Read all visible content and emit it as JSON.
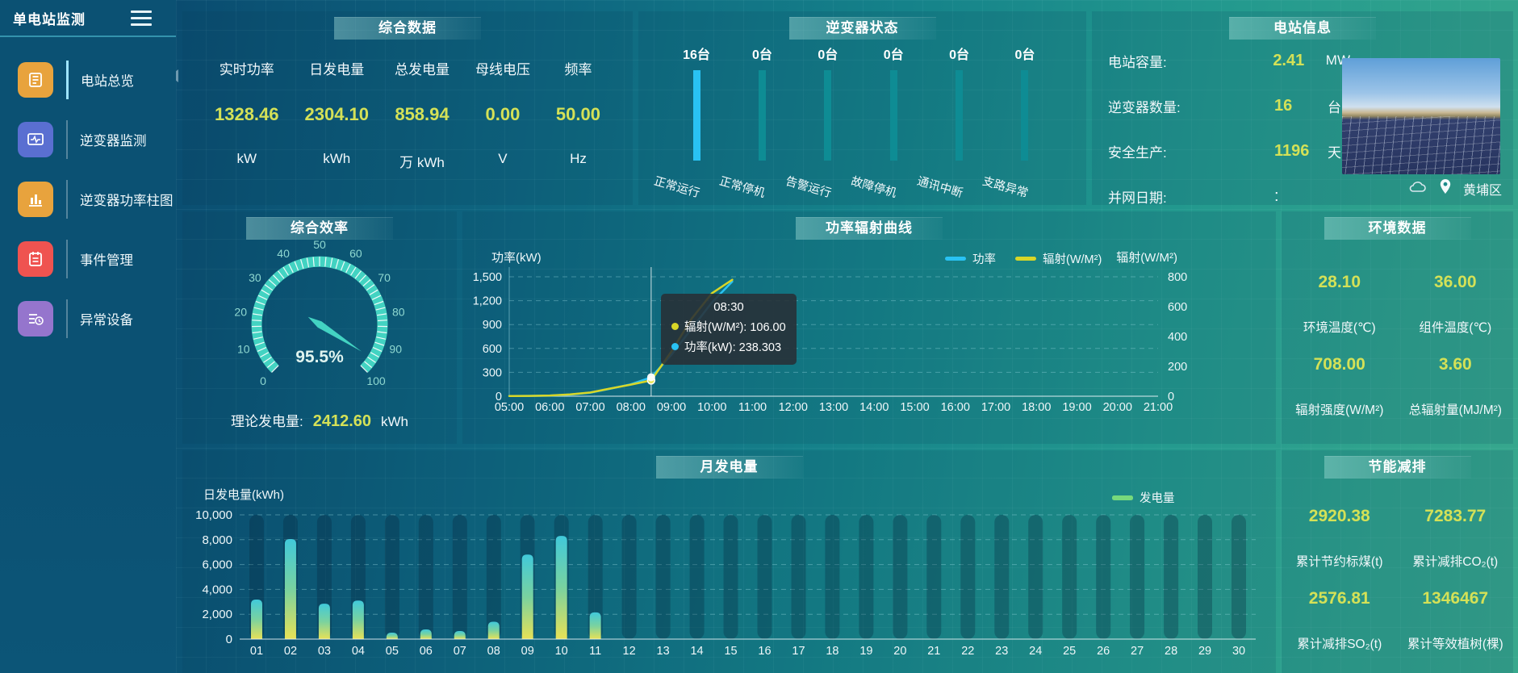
{
  "app": {
    "title": "单电站监测"
  },
  "sidebar": {
    "items": [
      {
        "id": "station-overview",
        "label": "电站总览",
        "icon": "report-icon",
        "color": "#e8a33d",
        "active": true
      },
      {
        "id": "inverter-monitor",
        "label": "逆变器监测",
        "icon": "monitor-icon",
        "color": "#5a6fd1",
        "active": false
      },
      {
        "id": "inverter-power-bars",
        "label": "逆变器功率柱图",
        "icon": "bar-chart-icon",
        "color": "#e8a33d",
        "active": false
      },
      {
        "id": "event-management",
        "label": "事件管理",
        "icon": "notebook-icon",
        "color": "#ef5350",
        "active": false
      },
      {
        "id": "abnormal-devices",
        "label": "异常设备",
        "icon": "device-list-icon",
        "color": "#9575cd",
        "active": false
      }
    ]
  },
  "summary": {
    "title": "综合数据",
    "metrics": [
      {
        "label": "实时功率",
        "value": "1328.46",
        "unit": "kW"
      },
      {
        "label": "日发电量",
        "value": "2304.10",
        "unit": "kWh"
      },
      {
        "label": "总发电量",
        "value": "858.94",
        "unit": "万 kWh"
      },
      {
        "label": "母线电压",
        "value": "0.00",
        "unit": "V"
      },
      {
        "label": "频率",
        "value": "50.00",
        "unit": "Hz"
      }
    ]
  },
  "inverter_status": {
    "title": "逆变器状态",
    "bars": [
      {
        "count": "16台",
        "label": "正常运行",
        "highlight": true
      },
      {
        "count": "0台",
        "label": "正常停机",
        "highlight": false
      },
      {
        "count": "0台",
        "label": "告警运行",
        "highlight": false
      },
      {
        "count": "0台",
        "label": "故障停机",
        "highlight": false
      },
      {
        "count": "0台",
        "label": "通讯中断",
        "highlight": false
      },
      {
        "count": "0台",
        "label": "支路异常",
        "highlight": false
      }
    ]
  },
  "station_info": {
    "title": "电站信息",
    "rows": [
      {
        "label": "电站容量:",
        "value": "2.41",
        "unit": "MW",
        "plain": false
      },
      {
        "label": "逆变器数量:",
        "value": "16",
        "unit": "台",
        "plain": false
      },
      {
        "label": "安全生产:",
        "value": "1196",
        "unit": "天",
        "plain": false
      },
      {
        "label": "并网日期:",
        "value": ":",
        "unit": "",
        "plain": true
      }
    ],
    "location": "黄埔区"
  },
  "efficiency": {
    "title": "综合效率",
    "value": 95.5,
    "value_text": "95.5%",
    "ticks": [
      0,
      10,
      20,
      30,
      40,
      50,
      60,
      70,
      80,
      90,
      100
    ],
    "theory_label": "理论发电量:",
    "theory_value": "2412.60",
    "theory_unit": "kWh"
  },
  "power_curve": {
    "title": "功率辐射曲线",
    "y_left_label": "功率(kW)",
    "y_right_label": "辐射(W/M²)",
    "legend": [
      {
        "label": "功率",
        "color": "#29c2f3"
      },
      {
        "label": "辐射(W/M²)",
        "color": "#d8d627"
      }
    ],
    "tooltip": {
      "time": "08:30",
      "lines": [
        {
          "color": "#d8d627",
          "text": "辐射(W/M²): 106.00"
        },
        {
          "color": "#29c2f3",
          "text": "功率(kW): 238.303"
        }
      ]
    }
  },
  "env": {
    "title": "环境数据",
    "stats": [
      {
        "value": "28.10",
        "label": "环境温度(℃)"
      },
      {
        "value": "36.00",
        "label": "组件温度(℃)"
      },
      {
        "value": "708.00",
        "label": "辐射强度(W/M²)"
      },
      {
        "value": "3.60",
        "label": "总辐射量(MJ/M²)"
      }
    ]
  },
  "monthly": {
    "title": "月发电量",
    "ylabel": "日发电量(kWh)",
    "legend": "发电量"
  },
  "saving": {
    "title": "节能减排",
    "stats": [
      {
        "value": "2920.38",
        "label": "累计节约标煤(t)"
      },
      {
        "value": "7283.77",
        "label": "累计减排CO₂(t)"
      },
      {
        "value": "2576.81",
        "label": "累计减排SO₂(t)"
      },
      {
        "value": "1346467",
        "label": "累计等效植树(棵)"
      }
    ]
  },
  "chart_data": [
    {
      "type": "line",
      "title": "功率辐射曲线",
      "x_range": [
        5,
        21
      ],
      "x_ticks": [
        "05:00",
        "06:00",
        "07:00",
        "08:00",
        "09:00",
        "10:00",
        "11:00",
        "12:00",
        "13:00",
        "14:00",
        "15:00",
        "16:00",
        "17:00",
        "18:00",
        "19:00",
        "20:00",
        "21:00"
      ],
      "y_left": {
        "label": "功率(kW)",
        "range": [
          0,
          1500
        ],
        "ticks": [
          "0",
          "300",
          "600",
          "900",
          "1,200",
          "1,500"
        ]
      },
      "y_right": {
        "label": "辐射(W/M²)",
        "range": [
          0,
          800
        ],
        "ticks": [
          "0",
          "200",
          "400",
          "600",
          "800"
        ]
      },
      "legend_position": "top",
      "grid": true,
      "hover_x": 8.5,
      "series": [
        {
          "name": "功率",
          "axis": "left",
          "color": "#29c2f3",
          "points": [
            [
              5,
              2
            ],
            [
              5.5,
              4
            ],
            [
              6,
              8
            ],
            [
              6.5,
              20
            ],
            [
              7,
              45
            ],
            [
              7.5,
              95
            ],
            [
              8,
              150
            ],
            [
              8.5,
              238.303
            ],
            [
              9,
              520
            ],
            [
              9.5,
              850
            ],
            [
              10,
              1180
            ],
            [
              10.5,
              1440
            ]
          ]
        },
        {
          "name": "辐射(W/M²)",
          "axis": "right",
          "color": "#d8d627",
          "points": [
            [
              5,
              1
            ],
            [
              5.5,
              2
            ],
            [
              6,
              5
            ],
            [
              6.5,
              12
            ],
            [
              7,
              25
            ],
            [
              7.5,
              52
            ],
            [
              8,
              78
            ],
            [
              8.5,
              106
            ],
            [
              9,
              300
            ],
            [
              9.5,
              520
            ],
            [
              10,
              690
            ],
            [
              10.5,
              780
            ]
          ]
        }
      ]
    },
    {
      "type": "bar",
      "title": "月发电量",
      "categories": [
        "01",
        "02",
        "03",
        "04",
        "05",
        "06",
        "07",
        "08",
        "09",
        "10",
        "11",
        "12",
        "13",
        "14",
        "15",
        "16",
        "17",
        "18",
        "19",
        "20",
        "21",
        "22",
        "23",
        "24",
        "25",
        "26",
        "27",
        "28",
        "29",
        "30"
      ],
      "values": [
        3180,
        8050,
        2850,
        3100,
        520,
        780,
        650,
        1400,
        6800,
        8300,
        2150,
        0,
        0,
        0,
        0,
        0,
        0,
        0,
        0,
        0,
        0,
        0,
        0,
        0,
        0,
        0,
        0,
        0,
        0,
        0
      ],
      "ylabel": "日发电量(kWh)",
      "ylim": [
        0,
        10000
      ],
      "y_ticks": [
        "0",
        "2,000",
        "4,000",
        "6,000",
        "8,000",
        "10,000"
      ],
      "legend": "发电量",
      "grid": true,
      "bar_gradient": [
        "#41c9da",
        "#79d2a0",
        "#e7e156"
      ]
    }
  ]
}
